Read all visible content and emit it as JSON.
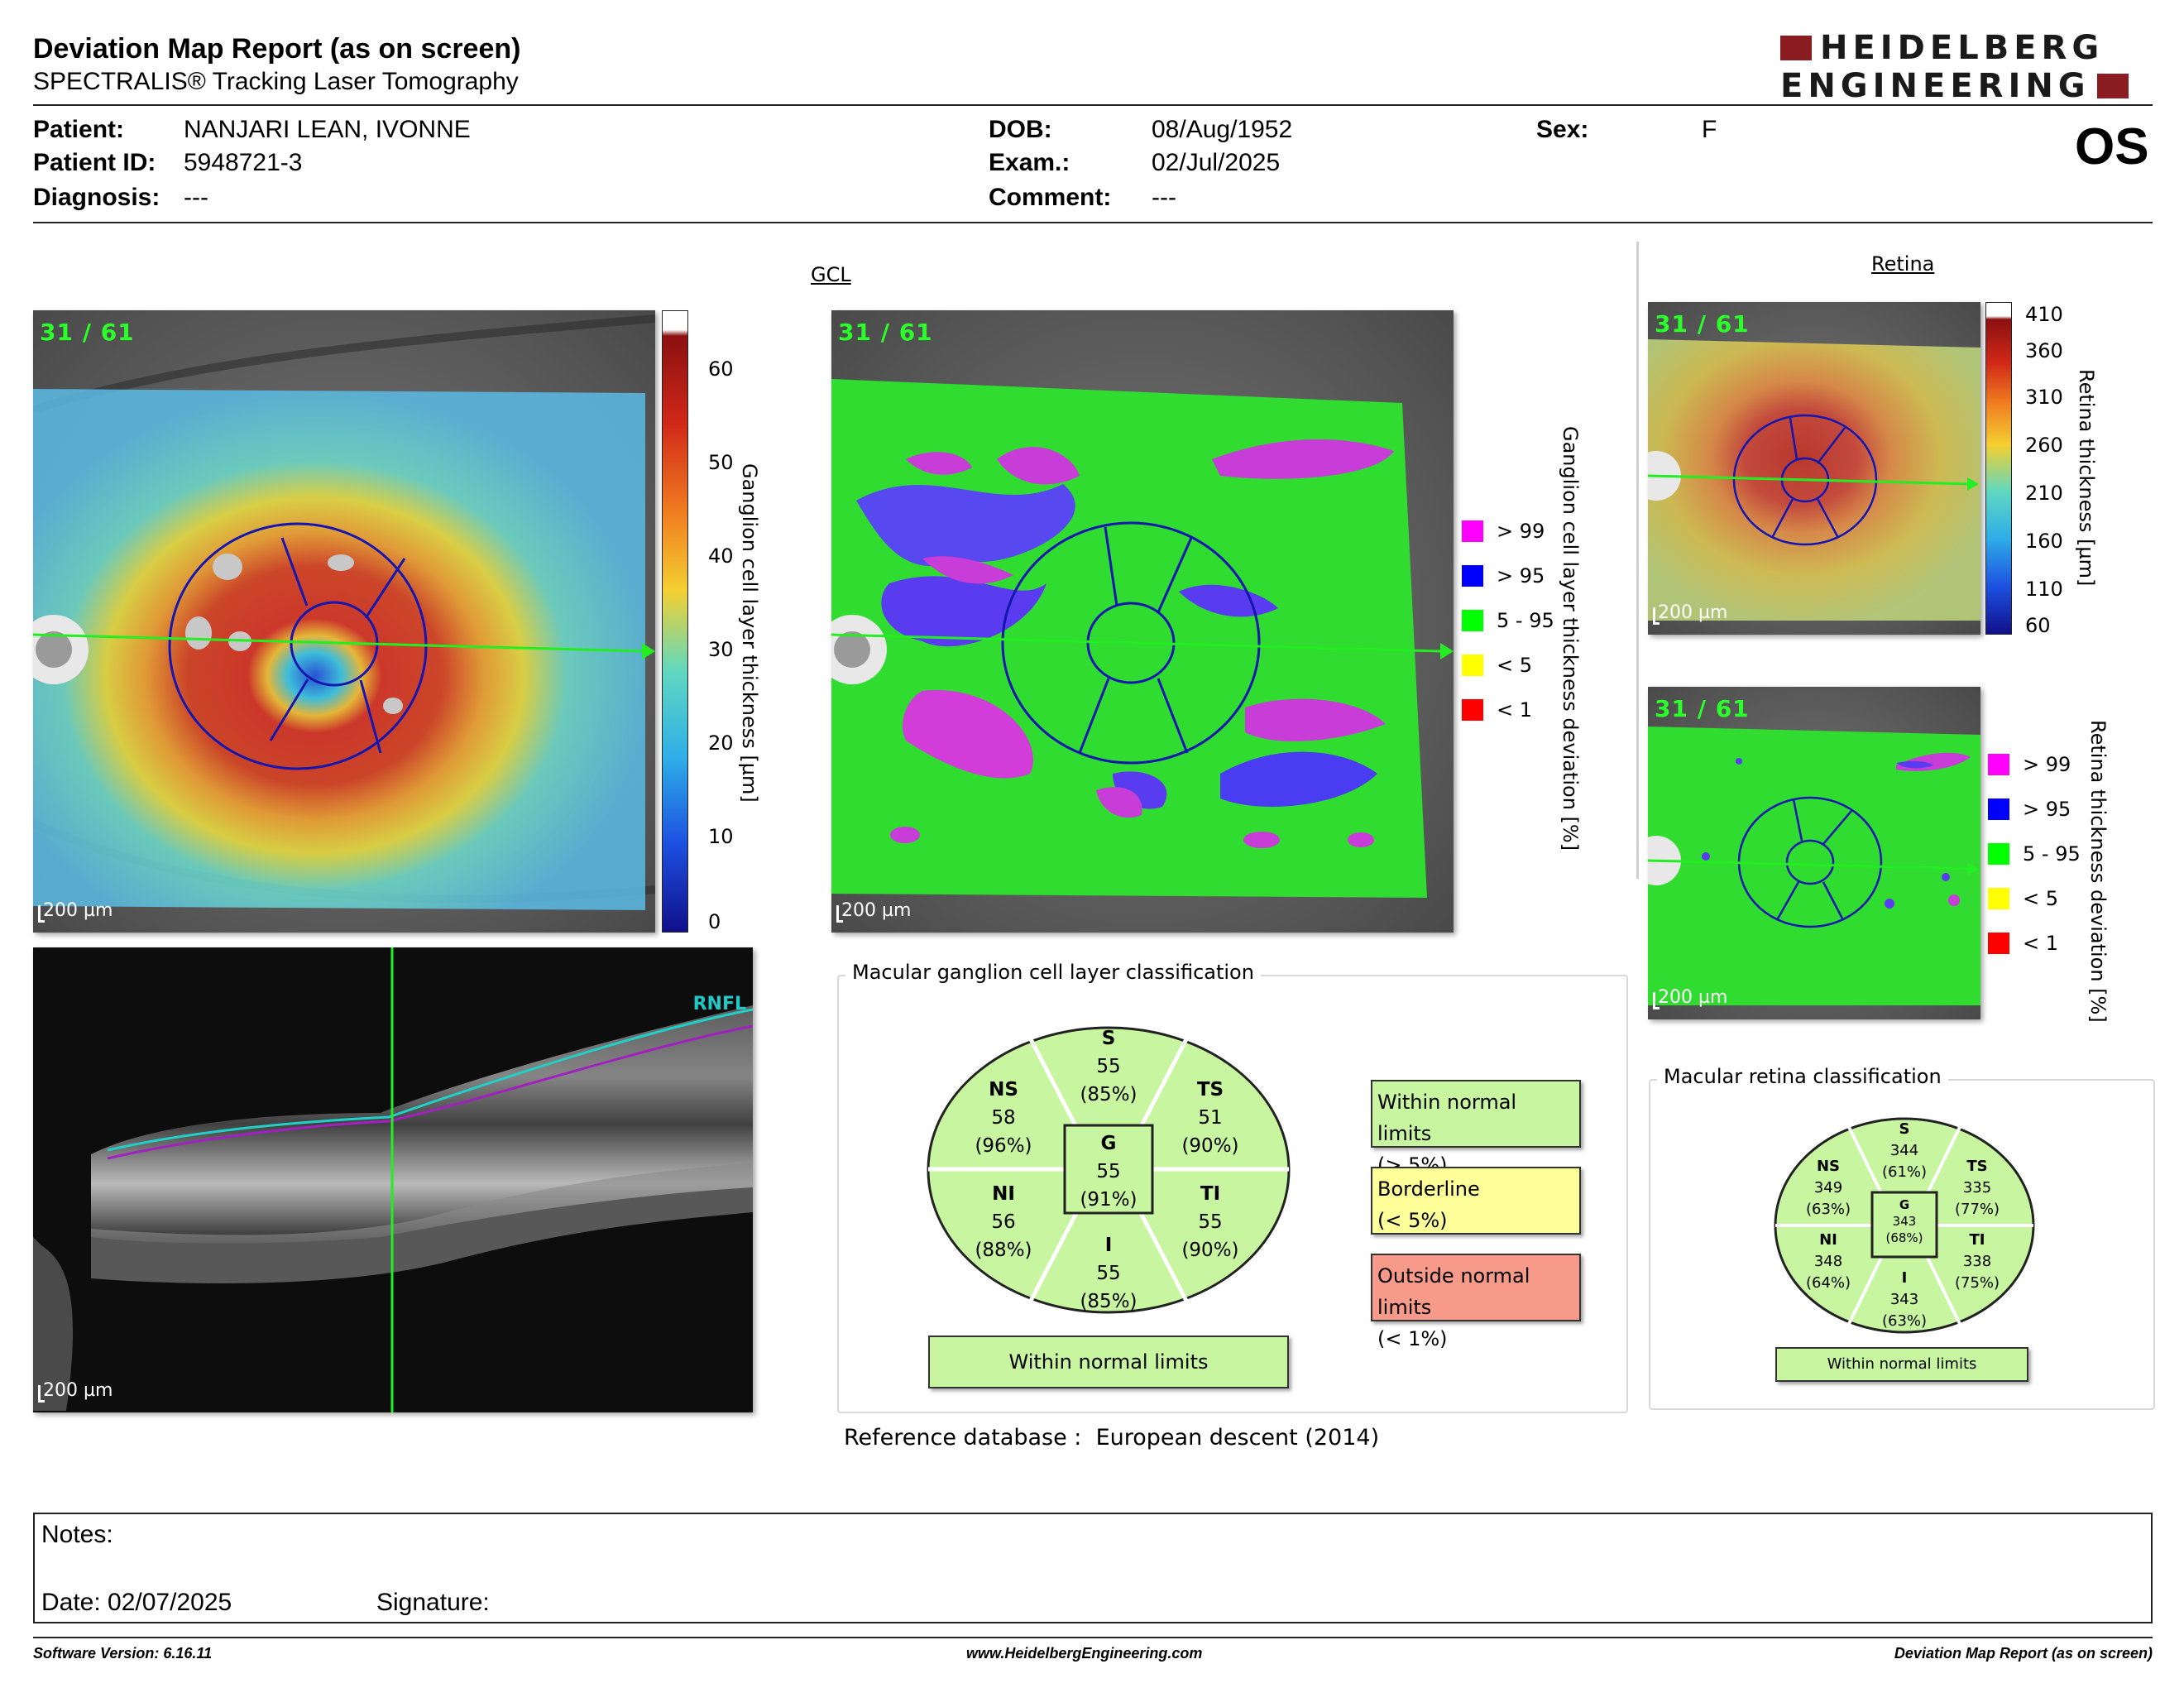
{
  "header": {
    "title": "Deviation Map Report (as on screen)",
    "subtitle": "SPECTRALIS® Tracking Laser Tomography",
    "logo_line1": "HEIDELBERG",
    "logo_line2": "ENGINEERING"
  },
  "patient": {
    "patient_label": "Patient:",
    "patient_value": "NANJARI LEAN, IVONNE",
    "id_label": "Patient ID:",
    "id_value": "5948721-3",
    "diagnosis_label": "Diagnosis:",
    "diagnosis_value": "---",
    "dob_label": "DOB:",
    "dob_value": "08/Aug/1952",
    "exam_label": "Exam.:",
    "exam_value": "02/Jul/2025",
    "comment_label": "Comment:",
    "comment_value": "---",
    "sex_label": "Sex:",
    "sex_value": "F",
    "eye": "OS"
  },
  "gcl": {
    "section_title": "GCL",
    "thickness_map": {
      "scan_tag": "31 / 61",
      "scale_label": "200 µm",
      "colorbar_ticks": [
        "60",
        "50",
        "40",
        "30",
        "20",
        "10",
        "0"
      ],
      "colorbar_label": "Ganglion cell layer thickness [µm]"
    },
    "deviation_map": {
      "scan_tag": "31 / 61",
      "scale_label": "200 µm",
      "axis_label": "Ganglion cell layer thickness deviation [%]",
      "legend": [
        {
          "label": "> 99",
          "color": "#ff00ff"
        },
        {
          "label": "> 95",
          "color": "#0000ff"
        },
        {
          "label": "5 - 95",
          "color": "#00ff00"
        },
        {
          "label": "< 5",
          "color": "#ffff00"
        },
        {
          "label": "< 1",
          "color": "#ff0000"
        }
      ]
    },
    "bscan": {
      "layer_label": "RNFL",
      "scale_label": "200 µm"
    },
    "classification": {
      "title": "Macular ganglion cell layer classification",
      "sectors": {
        "S": {
          "name": "S",
          "value": "55",
          "pct": "(85%)"
        },
        "NS": {
          "name": "NS",
          "value": "58",
          "pct": "(96%)"
        },
        "TS": {
          "name": "TS",
          "value": "51",
          "pct": "(90%)"
        },
        "G": {
          "name": "G",
          "value": "55",
          "pct": "(91%)"
        },
        "NI": {
          "name": "NI",
          "value": "56",
          "pct": "(88%)"
        },
        "TI": {
          "name": "TI",
          "value": "55",
          "pct": "(90%)"
        },
        "I": {
          "name": "I",
          "value": "55",
          "pct": "(85%)"
        }
      },
      "result": "Within normal limits",
      "legend": {
        "within_line1": "Within normal limits",
        "within_line2": "(> 5%)",
        "border_line1": "Borderline",
        "border_line2": "(< 5%)",
        "outside_line1": "Outside normal limits",
        "outside_line2": "(< 1%)"
      },
      "colors": {
        "within": "#c8f5a0",
        "borderline": "#ffff99",
        "outside": "#f79a8a"
      }
    },
    "reference_label": "Reference database :",
    "reference_value": "European descent (2014)"
  },
  "retina": {
    "section_title": "Retina",
    "thickness_map": {
      "scan_tag": "31 / 61",
      "scale_label": "200 µm",
      "colorbar_ticks": [
        "410",
        "360",
        "310",
        "260",
        "210",
        "160",
        "110",
        "60"
      ],
      "colorbar_label": "Retina thickness [µm]"
    },
    "deviation_map": {
      "scan_tag": "31 / 61",
      "scale_label": "200 µm",
      "axis_label": "Retina thickness deviation [%]",
      "legend": [
        {
          "label": "> 99",
          "color": "#ff00ff"
        },
        {
          "label": "> 95",
          "color": "#0000ff"
        },
        {
          "label": "5 - 95",
          "color": "#00ff00"
        },
        {
          "label": "< 5",
          "color": "#ffff00"
        },
        {
          "label": "< 1",
          "color": "#ff0000"
        }
      ]
    },
    "classification": {
      "title": "Macular retina classification",
      "sectors": {
        "S": {
          "name": "S",
          "value": "344",
          "pct": "(61%)"
        },
        "NS": {
          "name": "NS",
          "value": "349",
          "pct": "(63%)"
        },
        "TS": {
          "name": "TS",
          "value": "335",
          "pct": "(77%)"
        },
        "G": {
          "name": "G",
          "value": "343",
          "pct": "(68%)"
        },
        "NI": {
          "name": "NI",
          "value": "348",
          "pct": "(64%)"
        },
        "TI": {
          "name": "TI",
          "value": "338",
          "pct": "(75%)"
        },
        "I": {
          "name": "I",
          "value": "343",
          "pct": "(63%)"
        }
      },
      "result": "Within normal limits"
    }
  },
  "notes": {
    "notes_label": "Notes:",
    "date_label": "Date: 02/07/2025",
    "signature_label": "Signature:"
  },
  "footer": {
    "software": "Software Version: 6.16.11",
    "website": "www.HeidelbergEngineering.com",
    "report": "Deviation Map Report (as on screen)"
  }
}
